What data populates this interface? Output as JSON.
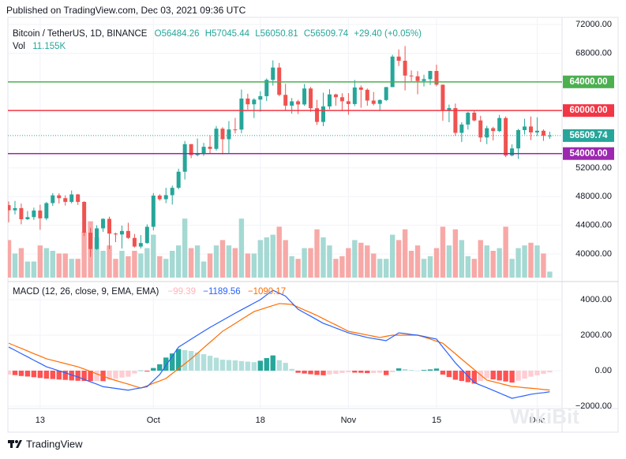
{
  "chart_data": {
    "type": "candlestick",
    "published": "Published on TradingView.com, Dec 03, 2021 09:36 UTC",
    "footer": "TradingView",
    "watermark": "WikiBit",
    "header": {
      "symbol": "Bitcoin / TetherUS, 1D, BINANCE",
      "open": "O56484.26",
      "high": "H57045.44",
      "low": "L56050.81",
      "close": "C56509.74",
      "change": "+29.40 (+0.05%)"
    },
    "up_color": "#26a69a",
    "down_color": "#ef5350",
    "categories": [
      null,
      null,
      null,
      null,
      null,
      "13",
      null,
      null,
      null,
      null,
      null,
      null,
      null,
      null,
      null,
      null,
      null,
      null,
      null,
      null,
      null,
      null,
      null,
      "Oct",
      null,
      null,
      null,
      null,
      null,
      null,
      null,
      null,
      null,
      null,
      null,
      null,
      null,
      null,
      null,
      null,
      "18",
      null,
      null,
      null,
      null,
      null,
      null,
      null,
      null,
      null,
      null,
      null,
      null,
      null,
      "Nov",
      null,
      null,
      null,
      null,
      null,
      null,
      null,
      null,
      null,
      null,
      null,
      null,
      null,
      "15",
      null,
      null,
      null,
      null,
      null,
      null,
      null,
      null,
      null,
      null,
      null,
      null,
      null,
      null,
      null,
      "Dec",
      null,
      null
    ],
    "open": [
      46811,
      46091,
      46392,
      44843,
      45137,
      46060,
      44964,
      47092,
      48176,
      47784,
      47261,
      48300,
      47260,
      42969,
      40693,
      43575,
      44896,
      42840,
      42716,
      43208,
      42236,
      41034,
      41522,
      43791,
      48141,
      47634,
      48200,
      49224,
      51471,
      55316,
      53785,
      53951,
      54949,
      54659,
      57471,
      56005,
      57367,
      57347,
      61672,
      60875,
      61528,
      62009,
      64280,
      66001,
      62193,
      60688,
      61286,
      60852,
      63078,
      60328,
      58413,
      60575,
      62253,
      61859,
      61299,
      60911,
      63219,
      62896,
      61395,
      60937,
      61470,
      63273,
      67525,
      66947,
      64882,
      64774,
      64122,
      64380,
      65519,
      63606,
      60058,
      60345,
      56891,
      58052,
      59707,
      58622,
      56247,
      57541,
      57138,
      58960,
      53726,
      54721,
      57274,
      57776,
      56950,
      57184,
      56484.26
    ],
    "high": [
      47334,
      47400,
      47031,
      45987,
      46460,
      46876,
      47250,
      48489,
      48463,
      48169,
      48843,
      48375,
      47350,
      43639,
      44000,
      44977,
      45200,
      42970,
      43950,
      44350,
      42787,
      42636,
      44132,
      48495,
      48336,
      49228,
      49536,
      51886,
      55750,
      55332,
      56100,
      55490,
      56561,
      57839,
      57680,
      58532,
      58974,
      62933,
      62350,
      61720,
      62695,
      64486,
      67000,
      66639,
      63732,
      61747,
      61500,
      63710,
      63293,
      61496,
      62499,
      62980,
      62359,
      62405,
      62437,
      64270,
      63500,
      63086,
      62595,
      61560,
      63286,
      67789,
      68524,
      69000,
      65600,
      65500,
      65000,
      65550,
      66401,
      63620,
      60840,
      60976,
      58372,
      59845,
      60029,
      59266,
      57875,
      57735,
      59398,
      59180,
      55280,
      57445,
      58865,
      59176,
      59053,
      57375,
      57045.44
    ],
    "low": [
      44412,
      45514,
      44132,
      44752,
      44743,
      43370,
      44710,
      46700,
      47033,
      46750,
      47041,
      46848,
      42500,
      39600,
      40566,
      43089,
      40675,
      41646,
      40750,
      42098,
      40888,
      40753,
      41410,
      43283,
      47430,
      47088,
      46891,
      49022,
      50382,
      53357,
      53617,
      53661,
      54080,
      54415,
      53879,
      54000,
      56818,
      56850,
      60150,
      58963,
      59844,
      61322,
      63481,
      62000,
      60000,
      59562,
      59510,
      60650,
      59817,
      58000,
      57820,
      60174,
      60673,
      59945,
      59405,
      60624,
      60382,
      60677,
      60721,
      60050,
      61322,
      63273,
      66222,
      62822,
      64100,
      62278,
      63360,
      63576,
      63400,
      58574,
      58373,
      56474,
      55600,
      57353,
      58486,
      55610,
      55317,
      55837,
      57000,
      53500,
      53610,
      53256,
      56666,
      55875,
      56458,
      55777,
      56050.81
    ],
    "close": [
      46091,
      46392,
      44843,
      45137,
      46060,
      44964,
      47092,
      48176,
      47784,
      47261,
      48300,
      47260,
      42969,
      40693,
      43575,
      44896,
      42840,
      42716,
      43208,
      42236,
      41034,
      41522,
      43791,
      48141,
      47634,
      48200,
      49224,
      51471,
      55316,
      53785,
      53951,
      54949,
      54659,
      57471,
      56005,
      57367,
      57347,
      61672,
      60875,
      61528,
      62009,
      64280,
      66001,
      62193,
      60688,
      61286,
      60852,
      63078,
      60328,
      58413,
      60575,
      62253,
      61859,
      61299,
      60911,
      63219,
      62896,
      61395,
      60937,
      61470,
      63273,
      67525,
      66947,
      64882,
      64774,
      64122,
      64380,
      65519,
      63606,
      60058,
      60345,
      56891,
      58052,
      59707,
      58622,
      56247,
      57541,
      57138,
      58960,
      53726,
      54721,
      57274,
      57776,
      56950,
      57184,
      56484,
      56509.74
    ],
    "ylim": [
      36150,
      73000
    ],
    "yticks": [
      {
        "value": 72000,
        "label": "72000.00"
      },
      {
        "value": 68000,
        "label": "68000.00"
      },
      {
        "value": 52000,
        "label": "52000.00"
      },
      {
        "value": 48000,
        "label": "48000.00"
      },
      {
        "value": 44000,
        "label": "44000.00"
      },
      {
        "value": 40000,
        "label": "40000.00"
      }
    ],
    "grid": true,
    "levels": [
      {
        "value": 64000,
        "label": "64000.00",
        "color": "#4caf50"
      },
      {
        "value": 60000,
        "label": "60000.00",
        "color": "#f23645"
      },
      {
        "value": 54000,
        "label": "54000.00",
        "color": "#9c27b0"
      }
    ],
    "last_price": {
      "value": 56509.74,
      "label": "56509.74",
      "color": "#26a69a"
    },
    "volume": {
      "name": "Vol",
      "last_label": "11.155K",
      "up_color": "#a5d9d3",
      "down_color": "#f7a9a7",
      "values": [
        70,
        45,
        55,
        30,
        30,
        60,
        55,
        50,
        45,
        45,
        35,
        35,
        85,
        105,
        75,
        50,
        60,
        35,
        50,
        40,
        50,
        45,
        55,
        80,
        40,
        35,
        50,
        60,
        110,
        55,
        60,
        30,
        45,
        60,
        70,
        60,
        55,
        110,
        45,
        45,
        70,
        75,
        80,
        95,
        70,
        40,
        35,
        55,
        55,
        90,
        75,
        60,
        35,
        40,
        55,
        70,
        65,
        60,
        45,
        35,
        35,
        80,
        70,
        90,
        50,
        60,
        35,
        40,
        55,
        95,
        60,
        90,
        70,
        40,
        35,
        70,
        60,
        50,
        55,
        95,
        35,
        55,
        60,
        65,
        60,
        45,
        11.155
      ]
    },
    "macd": {
      "title": "MACD (12, 26, close, 9, EMA, EMA)",
      "ylim": [
        -2133,
        5022
      ],
      "yticks": [
        {
          "value": 4000,
          "label": "4000.00"
        },
        {
          "value": 2000,
          "label": "2000.00"
        },
        {
          "value": 0,
          "label": "0.00"
        },
        {
          "value": -2000,
          "label": "−2000.00"
        }
      ],
      "histogram": {
        "last_label": "−99.39",
        "colors": [
          "#26a69a",
          "#b2dfdb",
          "#ff5252",
          "#ffcdd2"
        ],
        "values": [
          -220,
          -250,
          -300,
          -330,
          -370,
          -410,
          -450,
          -470,
          -500,
          -520,
          -550,
          -570,
          -580,
          -590,
          -580,
          -590,
          -510,
          -450,
          -390,
          -340,
          -160,
          10,
          -50,
          150,
          360,
          740,
          970,
          1220,
          1160,
          1110,
          1020,
          930,
          840,
          730,
          620,
          600,
          580,
          540,
          510,
          480,
          560,
          710,
          860,
          590,
          440,
          100,
          -120,
          -160,
          -200,
          -240,
          -260,
          -210,
          -180,
          -130,
          -90,
          -110,
          -120,
          -140,
          -130,
          -120,
          -250,
          -90,
          130,
          90,
          40,
          0,
          40,
          70,
          120,
          -220,
          -360,
          -510,
          -580,
          -650,
          -730,
          -580,
          -430,
          -490,
          -550,
          -610,
          -670,
          -560,
          -450,
          -340,
          -260,
          -180,
          -99.39
        ]
      },
      "macd_line": {
        "color": "#2962ff",
        "last_label": "−1189.56",
        "values": [
          1330,
          1150,
          960,
          780,
          590,
          410,
          220,
          110,
          -10,
          -120,
          -240,
          -350,
          -490,
          -630,
          -760,
          -900,
          -950,
          -1000,
          -1050,
          -1100,
          -1030,
          -970,
          -900,
          -560,
          -220,
          300,
          810,
          1330,
          1550,
          1780,
          2000,
          2220,
          2440,
          2640,
          2840,
          3040,
          3240,
          3430,
          3620,
          3810,
          4000,
          4270,
          4530,
          4370,
          4200,
          3830,
          3460,
          3260,
          3070,
          2870,
          2670,
          2540,
          2400,
          2270,
          2130,
          2040,
          1960,
          1870,
          1810,
          1750,
          1690,
          1910,
          2130,
          2090,
          2040,
          2000,
          1930,
          1850,
          1780,
          1330,
          890,
          440,
          70,
          -300,
          -670,
          -820,
          -960,
          -1110,
          -1260,
          -1410,
          -1560,
          -1480,
          -1410,
          -1330,
          -1280,
          -1240,
          -1189.56
        ]
      },
      "signal": {
        "color": "#ff6d00",
        "last_label": "−1090.17",
        "values": [
          1550,
          1400,
          1260,
          1110,
          960,
          820,
          670,
          580,
          490,
          400,
          310,
          220,
          90,
          -40,
          -180,
          -310,
          -440,
          -550,
          -660,
          -760,
          -870,
          -980,
          -850,
          -710,
          -580,
          -440,
          -160,
          110,
          390,
          670,
          980,
          1290,
          1600,
          1910,
          2220,
          2440,
          2660,
          2890,
          3110,
          3330,
          3440,
          3560,
          3670,
          3780,
          3760,
          3730,
          3580,
          3420,
          3270,
          3110,
          2930,
          2750,
          2580,
          2400,
          2220,
          2150,
          2080,
          2010,
          1940,
          1870,
          1940,
          2000,
          2000,
          2000,
          2000,
          2000,
          1890,
          1780,
          1660,
          1550,
          1250,
          950,
          650,
          350,
          60,
          -240,
          -530,
          -620,
          -710,
          -800,
          -890,
          -920,
          -960,
          -990,
          -1020,
          -1060,
          -1090.17
        ]
      }
    }
  }
}
